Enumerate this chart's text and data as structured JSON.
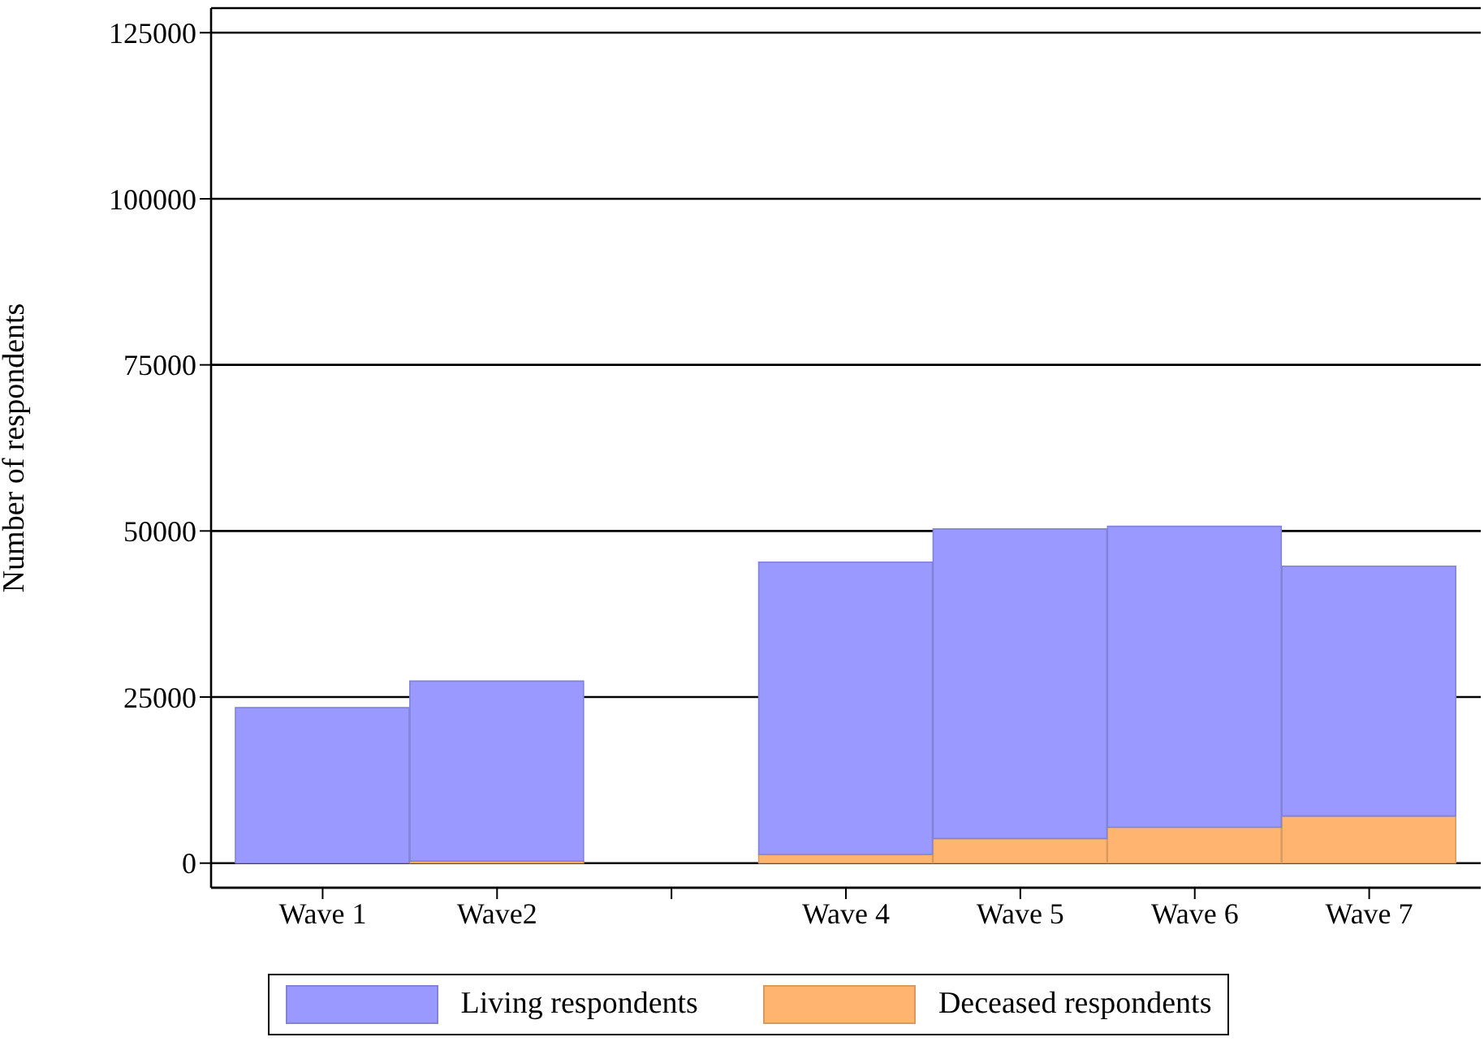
{
  "chart_data": {
    "type": "bar",
    "ylabel": "Number of respondents",
    "categories": [
      "Wave 1",
      "Wave2",
      null,
      "Wave 4",
      "Wave 5",
      "Wave 6",
      "Wave 7"
    ],
    "series": [
      {
        "name": "Deceased respondents",
        "color": "#ffb570",
        "values": [
          0,
          300,
          null,
          1300,
          3700,
          5400,
          7100
        ]
      },
      {
        "name": "Living respondents",
        "color": "#9999ff",
        "values": [
          23400,
          27100,
          null,
          44000,
          46600,
          45300,
          37600
        ]
      }
    ],
    "stacked": true,
    "ylim": [
      -3700,
      128700
    ],
    "yticks": [
      0,
      25000,
      50000,
      75000,
      100000,
      125000
    ],
    "grid": "y",
    "legend": "bottom"
  }
}
